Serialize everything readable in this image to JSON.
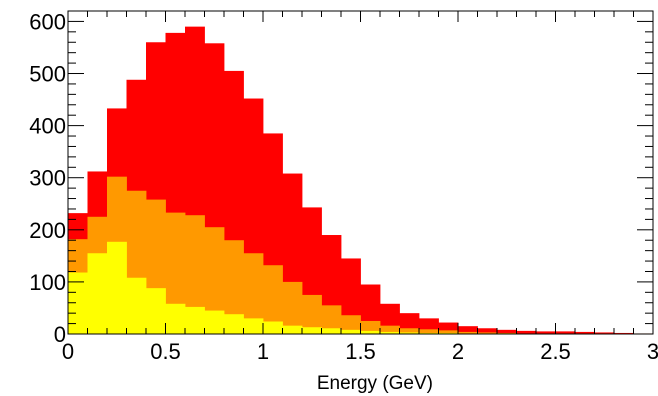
{
  "chart_data": {
    "type": "bar",
    "subtype": "stacked-histogram",
    "title": "",
    "xlabel": "Energy (GeV)",
    "ylabel": "",
    "xlim": [
      0,
      3
    ],
    "ylim": [
      0,
      620
    ],
    "grid": false,
    "legend": "none",
    "bin_edges": [
      0,
      0.1,
      0.2,
      0.3,
      0.4,
      0.5,
      0.6,
      0.7,
      0.8,
      0.9,
      1.0,
      1.1,
      1.2,
      1.3,
      1.4,
      1.5,
      1.6,
      1.7,
      1.8,
      1.9,
      2.0,
      2.1,
      2.2,
      2.3,
      2.4,
      2.5,
      2.6,
      2.7,
      2.8,
      2.9,
      3.0
    ],
    "series": [
      {
        "color": "#ffff00",
        "values": [
          118,
          155,
          177,
          108,
          88,
          58,
          52,
          45,
          38,
          30,
          24,
          16,
          13,
          11,
          8,
          6,
          4,
          3,
          2,
          2,
          1,
          1,
          1,
          0,
          0,
          0,
          0,
          0,
          0,
          0
        ]
      },
      {
        "color": "#ff9900",
        "values": [
          182,
          225,
          302,
          275,
          258,
          233,
          228,
          205,
          180,
          155,
          132,
          100,
          75,
          55,
          36,
          25,
          16,
          11,
          9,
          7,
          4,
          3,
          2,
          1,
          1,
          1,
          1,
          1,
          1,
          1
        ]
      },
      {
        "color": "#ff0000",
        "values": [
          232,
          312,
          433,
          488,
          560,
          578,
          590,
          558,
          505,
          452,
          385,
          308,
          243,
          190,
          145,
          95,
          58,
          40,
          30,
          22,
          15,
          11,
          8,
          6,
          5,
          5,
          4,
          3,
          2,
          1
        ]
      }
    ],
    "x_ticks": [
      {
        "value": 0,
        "label": "0"
      },
      {
        "value": 0.5,
        "label": "0.5"
      },
      {
        "value": 1,
        "label": "1"
      },
      {
        "value": 1.5,
        "label": "1.5"
      },
      {
        "value": 2,
        "label": "2"
      },
      {
        "value": 2.5,
        "label": "2.5"
      },
      {
        "value": 3,
        "label": "3"
      }
    ],
    "y_ticks": [
      {
        "value": 0,
        "label": "0"
      },
      {
        "value": 100,
        "label": "100"
      },
      {
        "value": 200,
        "label": "200"
      },
      {
        "value": 300,
        "label": "300"
      },
      {
        "value": 400,
        "label": "400"
      },
      {
        "value": 500,
        "label": "500"
      },
      {
        "value": 600,
        "label": "600"
      }
    ]
  }
}
